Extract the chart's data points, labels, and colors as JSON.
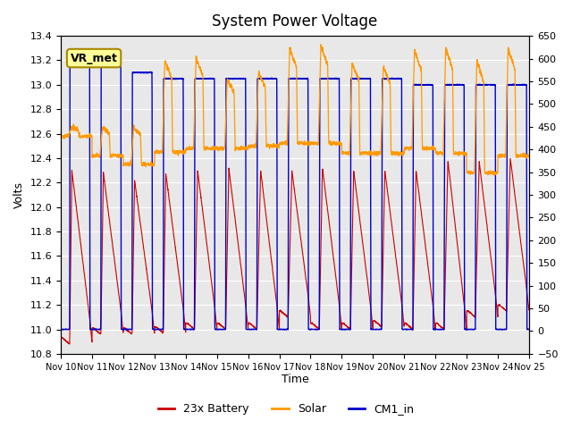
{
  "title": "System Power Voltage",
  "xlabel": "Time",
  "ylabel_left": "Volts",
  "ylim_left": [
    10.8,
    13.4
  ],
  "ylim_right": [
    -50,
    650
  ],
  "yticks_left": [
    10.8,
    11.0,
    11.2,
    11.4,
    11.6,
    11.8,
    12.0,
    12.2,
    12.4,
    12.6,
    12.8,
    13.0,
    13.2,
    13.4
  ],
  "yticks_right": [
    -50,
    0,
    50,
    100,
    150,
    200,
    250,
    300,
    350,
    400,
    450,
    500,
    550,
    600,
    650
  ],
  "xtick_positions": [
    0,
    1,
    2,
    3,
    4,
    5,
    6,
    7,
    8,
    9,
    10,
    11,
    12,
    13,
    14,
    15
  ],
  "xtick_labels": [
    "Nov 10",
    "Nov 11",
    "Nov 12",
    "Nov 13",
    "Nov 14",
    "Nov 15",
    "Nov 16",
    "Nov 17",
    "Nov 18",
    "Nov 19",
    "Nov 20",
    "Nov 21",
    "Nov 22",
    "Nov 23",
    "Nov 24",
    "Nov 25"
  ],
  "colors": {
    "battery": "#cc0000",
    "solar": "#ff9900",
    "cm1": "#0000cc",
    "background": "#e8e8e8",
    "grid": "#ffffff"
  },
  "vr_met_label": "VR_met",
  "legend_labels": [
    "23x Battery",
    "Solar",
    "CM1_in"
  ],
  "num_days": 15,
  "pts_per_day": 200
}
